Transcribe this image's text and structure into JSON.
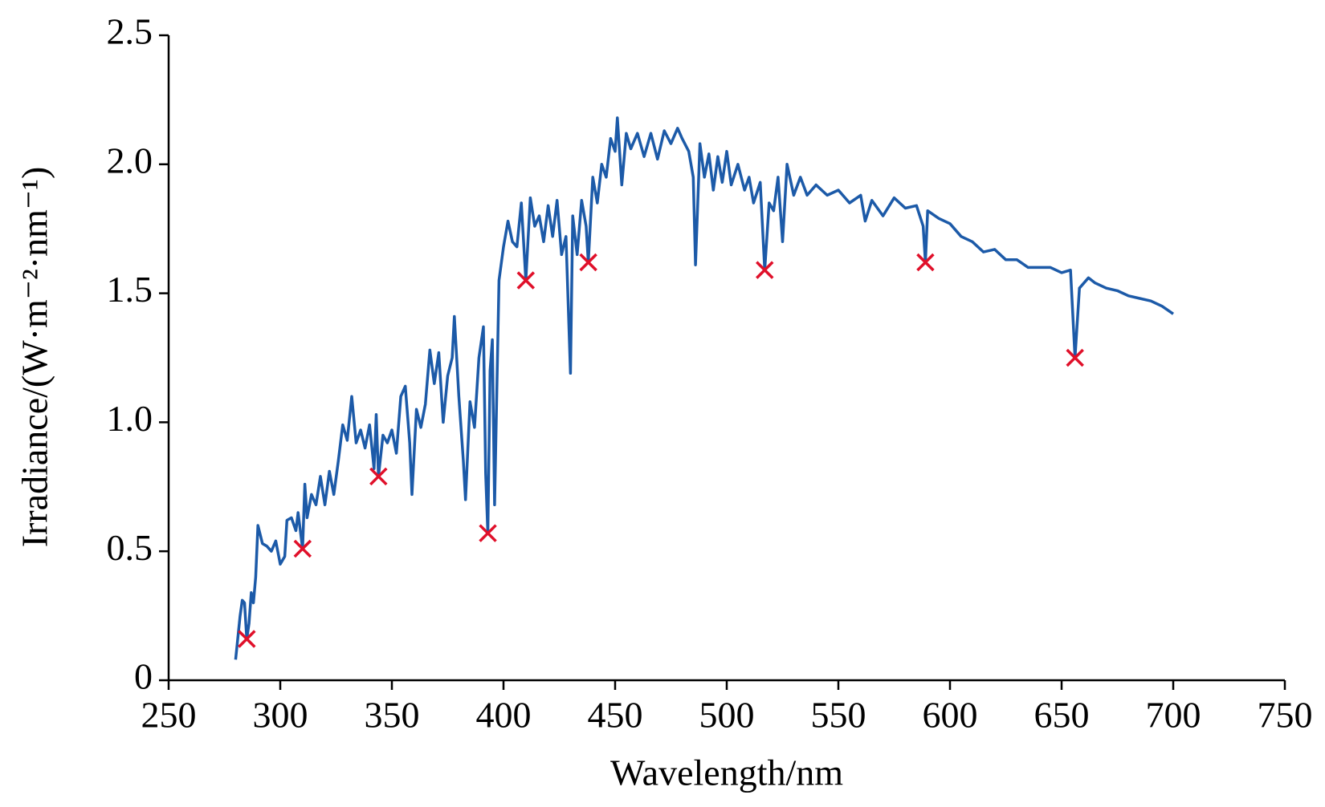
{
  "chart_data": {
    "type": "line",
    "xlabel": "Wavelength/nm",
    "ylabel": "Irradiance/(W·m⁻²·nm⁻¹)",
    "xlim": [
      250,
      750
    ],
    "xticks": [
      250,
      300,
      350,
      400,
      450,
      500,
      550,
      600,
      650,
      700,
      750
    ],
    "ylim": [
      0,
      2.5
    ],
    "yticks": [
      0,
      0.5,
      {
        "value": 1,
        "label": "1.0"
      },
      1.5,
      {
        "value": 2,
        "label": "2.0"
      },
      2.5
    ],
    "line": {
      "color": "#1c5aa8",
      "x": [
        280,
        282,
        283,
        284,
        285,
        286,
        287,
        288,
        289,
        290,
        292,
        294,
        296,
        298,
        300,
        302,
        303,
        305,
        307,
        308,
        310,
        311,
        312,
        314,
        316,
        318,
        320,
        322,
        324,
        326,
        328,
        330,
        332,
        334,
        336,
        338,
        340,
        342,
        343,
        344,
        346,
        348,
        350,
        352,
        354,
        356,
        358,
        359,
        361,
        363,
        365,
        367,
        369,
        371,
        373,
        375,
        377,
        378,
        380,
        382,
        383,
        385,
        387,
        389,
        391,
        392,
        393,
        394,
        395,
        396,
        398,
        400,
        402,
        404,
        406,
        408,
        410,
        412,
        414,
        416,
        418,
        420,
        422,
        424,
        426,
        428,
        430,
        431,
        433,
        435,
        437,
        438,
        440,
        442,
        444,
        446,
        448,
        450,
        451,
        453,
        455,
        457,
        460,
        463,
        466,
        469,
        472,
        475,
        478,
        480,
        483,
        485,
        486,
        488,
        490,
        492,
        494,
        496,
        498,
        500,
        502,
        505,
        508,
        510,
        512,
        515,
        517,
        519,
        521,
        523,
        525,
        527,
        530,
        533,
        536,
        540,
        545,
        550,
        555,
        560,
        562,
        565,
        570,
        575,
        580,
        585,
        588,
        589,
        590,
        595,
        600,
        605,
        610,
        615,
        620,
        625,
        630,
        635,
        640,
        645,
        650,
        654,
        656,
        658,
        662,
        665,
        670,
        675,
        680,
        685,
        690,
        695,
        700
      ],
      "values": [
        0.08,
        0.25,
        0.31,
        0.3,
        0.16,
        0.22,
        0.34,
        0.3,
        0.4,
        0.6,
        0.53,
        0.52,
        0.5,
        0.54,
        0.45,
        0.48,
        0.62,
        0.63,
        0.58,
        0.65,
        0.51,
        0.76,
        0.63,
        0.72,
        0.68,
        0.79,
        0.68,
        0.81,
        0.72,
        0.85,
        0.99,
        0.93,
        1.1,
        0.92,
        0.97,
        0.9,
        0.99,
        0.82,
        1.03,
        0.79,
        0.95,
        0.92,
        0.97,
        0.88,
        1.1,
        1.14,
        0.92,
        0.72,
        1.05,
        0.98,
        1.07,
        1.28,
        1.15,
        1.27,
        1.0,
        1.18,
        1.25,
        1.41,
        1.1,
        0.85,
        0.7,
        1.08,
        0.98,
        1.25,
        1.37,
        0.8,
        0.57,
        1.2,
        1.32,
        0.68,
        1.55,
        1.68,
        1.78,
        1.7,
        1.68,
        1.85,
        1.55,
        1.87,
        1.76,
        1.8,
        1.7,
        1.84,
        1.72,
        1.86,
        1.65,
        1.72,
        1.19,
        1.8,
        1.65,
        1.86,
        1.76,
        1.62,
        1.95,
        1.85,
        2.0,
        1.95,
        2.1,
        2.05,
        2.18,
        1.92,
        2.12,
        2.06,
        2.12,
        2.03,
        2.12,
        2.02,
        2.13,
        2.08,
        2.14,
        2.1,
        2.05,
        1.95,
        1.61,
        2.08,
        1.95,
        2.04,
        1.9,
        2.03,
        1.93,
        2.05,
        1.92,
        2.0,
        1.9,
        1.95,
        1.85,
        1.93,
        1.59,
        1.85,
        1.82,
        1.95,
        1.7,
        2.0,
        1.88,
        1.95,
        1.88,
        1.92,
        1.88,
        1.9,
        1.85,
        1.88,
        1.78,
        1.86,
        1.8,
        1.87,
        1.83,
        1.84,
        1.76,
        1.62,
        1.82,
        1.79,
        1.77,
        1.72,
        1.7,
        1.66,
        1.67,
        1.63,
        1.63,
        1.6,
        1.6,
        1.6,
        1.58,
        1.59,
        1.25,
        1.52,
        1.56,
        1.54,
        1.52,
        1.51,
        1.49,
        1.48,
        1.47,
        1.45,
        1.42
      ]
    },
    "markers": {
      "color": "#e0102a",
      "x": [
        285,
        310,
        344,
        393,
        410,
        438,
        517,
        589,
        656
      ],
      "values": [
        0.16,
        0.51,
        0.79,
        0.57,
        1.55,
        1.62,
        1.59,
        1.62,
        1.25
      ]
    }
  }
}
